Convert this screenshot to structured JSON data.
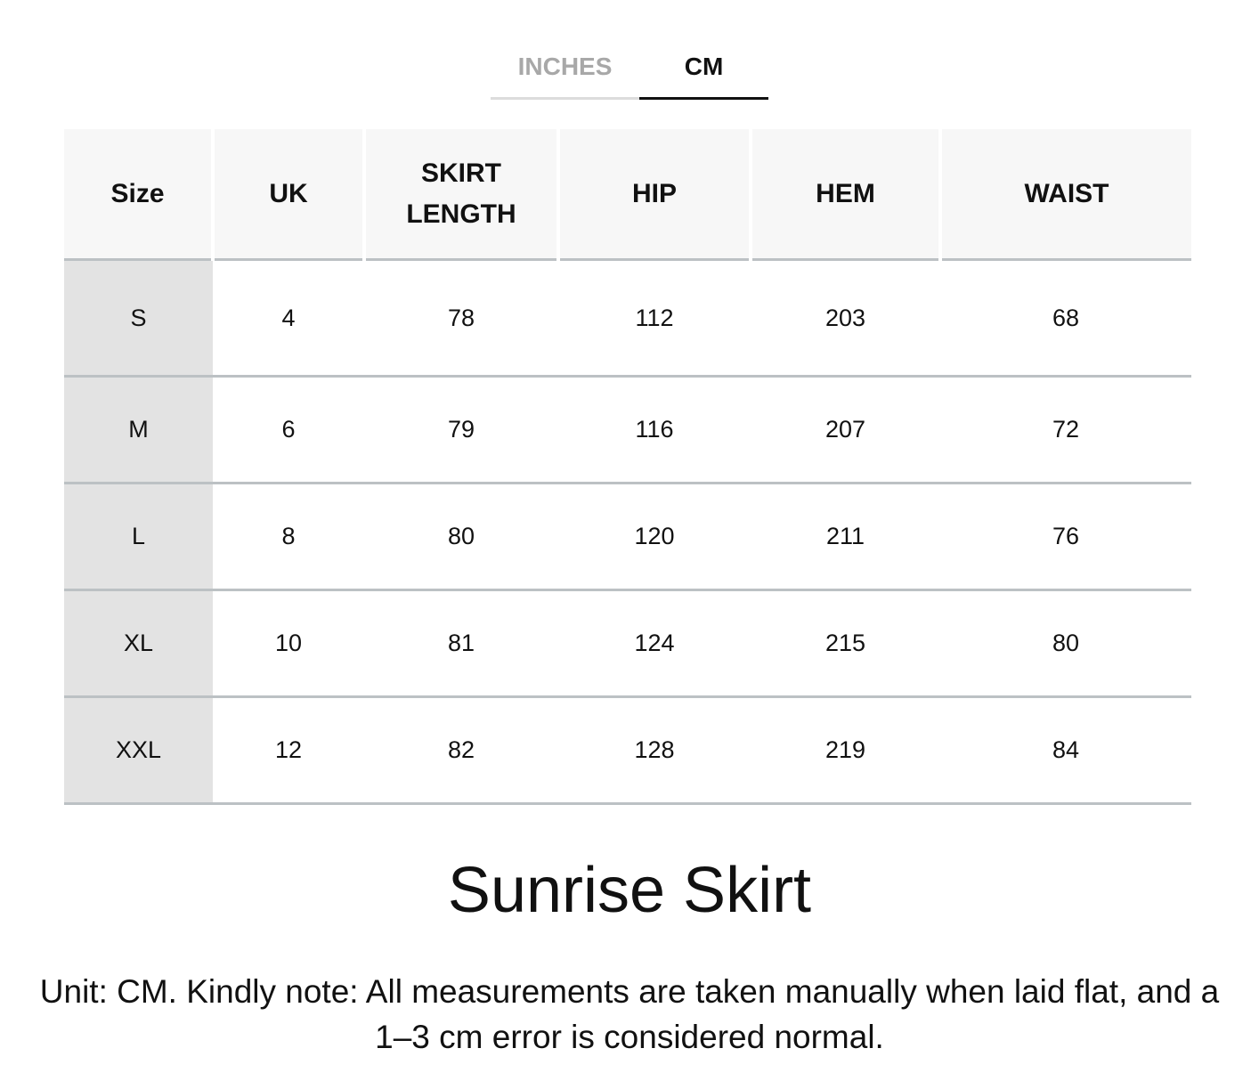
{
  "tabs": [
    {
      "label": "INCHES",
      "active": false
    },
    {
      "label": "CM",
      "active": true
    }
  ],
  "table": {
    "headers": [
      "Size",
      "UK",
      "SKIRT LENGTH",
      "HIP",
      "HEM",
      "WAIST"
    ],
    "rows": [
      [
        "S",
        "4",
        "78",
        "112",
        "203",
        "68"
      ],
      [
        "M",
        "6",
        "79",
        "116",
        "207",
        "72"
      ],
      [
        "L",
        "8",
        "80",
        "120",
        "211",
        "76"
      ],
      [
        "XL",
        "10",
        "81",
        "124",
        "215",
        "80"
      ],
      [
        "XXL",
        "12",
        "82",
        "128",
        "219",
        "84"
      ]
    ]
  },
  "title": "Sunrise Skirt",
  "note": "Unit: CM. Kindly note: All measurements are taken manually when laid flat, and a 1–3 cm error is considered normal.",
  "colors": {
    "header_bg": "#f7f7f7",
    "size_col_bg": "#e3e3e3",
    "divider": "#bcc1c4",
    "inactive_tab": "#a8a8a8"
  }
}
